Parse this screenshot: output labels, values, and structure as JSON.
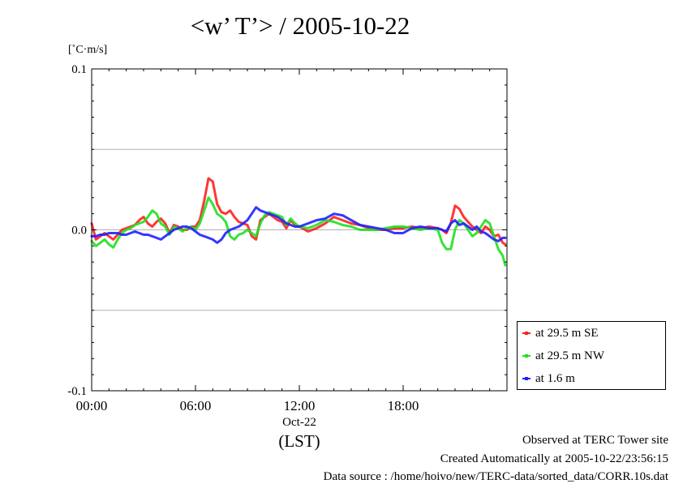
{
  "title": "<w’ T’> / 2005-10-22",
  "unit_label": "[˚C·m/s]",
  "x_sub_label": "Oct-22",
  "x_label": "(LST)",
  "footer": {
    "site": "Observed at TERC Tower site",
    "created": "Created Automatically at 2005-10-22/23:56:15",
    "source": "Data source : /home/hoivo/new/TERC-data/sorted_data/CORR.10s.dat"
  },
  "chart_data": {
    "type": "line",
    "title": "<w’ T’> / 2005-10-22",
    "ylabel": "[˚C·m/s]",
    "xlabel": "(LST)",
    "xlim": [
      0,
      24
    ],
    "ylim": [
      -0.1,
      0.1
    ],
    "x_ticks": [
      0,
      6,
      12,
      18
    ],
    "x_tick_labels": [
      "00:00",
      "06:00",
      "12:00",
      "18:00"
    ],
    "y_ticks": [
      -0.1,
      0.0,
      0.1
    ],
    "y_tick_labels": [
      "-0.1",
      "0.0",
      "0.1"
    ],
    "gridlines_y": [
      -0.05,
      0.0,
      0.05
    ],
    "legend_position": "bottom-right",
    "series": [
      {
        "name": "at 29.5 m SE",
        "color": "#ff2020",
        "x": [
          0,
          0.25,
          0.5,
          0.75,
          1,
          1.25,
          1.5,
          1.75,
          2,
          2.25,
          2.5,
          2.75,
          3,
          3.25,
          3.5,
          3.75,
          4,
          4.25,
          4.5,
          4.75,
          5,
          5.25,
          5.5,
          5.75,
          6,
          6.25,
          6.5,
          6.75,
          7,
          7.25,
          7.5,
          7.75,
          8,
          8.25,
          8.5,
          8.75,
          9,
          9.25,
          9.5,
          9.75,
          10,
          10.25,
          10.5,
          10.75,
          11,
          11.25,
          11.5,
          11.75,
          12,
          12.5,
          13,
          13.5,
          14,
          14.5,
          15,
          15.5,
          16,
          16.5,
          17,
          17.5,
          18,
          18.5,
          19,
          19.5,
          20,
          20.25,
          20.5,
          20.75,
          21,
          21.25,
          21.5,
          21.75,
          22,
          22.25,
          22.5,
          22.75,
          23,
          23.25,
          23.5,
          23.75,
          23.9
        ],
        "values": [
          0.004,
          -0.006,
          -0.004,
          -0.002,
          -0.004,
          -0.006,
          -0.003,
          0.0,
          0.001,
          0.002,
          0.003,
          0.006,
          0.008,
          0.004,
          0.002,
          0.005,
          0.007,
          0.004,
          -0.002,
          0.003,
          0.002,
          0.0,
          0.0,
          0.002,
          0.002,
          0.006,
          0.018,
          0.032,
          0.03,
          0.016,
          0.011,
          0.01,
          0.012,
          0.008,
          0.005,
          0.004,
          0.003,
          -0.004,
          -0.006,
          0.006,
          0.008,
          0.01,
          0.008,
          0.006,
          0.005,
          0.001,
          0.006,
          0.003,
          0.002,
          -0.001,
          0.001,
          0.004,
          0.008,
          0.006,
          0.004,
          0.003,
          0.001,
          0.0,
          0.0,
          0.001,
          0.001,
          0.002,
          0.001,
          0.002,
          0.001,
          0.0,
          -0.002,
          0.004,
          0.015,
          0.013,
          0.008,
          0.005,
          0.002,
          0.0,
          -0.002,
          0.002,
          0.0,
          -0.004,
          -0.003,
          -0.008,
          -0.009
        ]
      },
      {
        "name": "at 29.5 m NW",
        "color": "#20e020",
        "x": [
          0,
          0.25,
          0.5,
          0.75,
          1,
          1.25,
          1.5,
          1.75,
          2,
          2.25,
          2.5,
          2.75,
          3,
          3.25,
          3.5,
          3.75,
          4,
          4.25,
          4.5,
          4.75,
          5,
          5.25,
          5.5,
          5.75,
          6,
          6.25,
          6.5,
          6.75,
          7,
          7.25,
          7.5,
          7.75,
          8,
          8.25,
          8.5,
          8.75,
          9,
          9.25,
          9.5,
          9.75,
          10,
          10.25,
          10.5,
          10.75,
          11,
          11.25,
          11.5,
          11.75,
          12,
          12.5,
          13,
          13.5,
          14,
          14.5,
          15,
          15.5,
          16,
          16.5,
          17,
          17.5,
          18,
          18.5,
          19,
          19.5,
          20,
          20.25,
          20.5,
          20.75,
          21,
          21.25,
          21.5,
          21.75,
          22,
          22.25,
          22.5,
          22.75,
          23,
          23.25,
          23.5,
          23.75,
          23.9
        ],
        "values": [
          -0.007,
          -0.01,
          -0.008,
          -0.006,
          -0.009,
          -0.011,
          -0.006,
          -0.002,
          0.0,
          0.001,
          0.003,
          0.004,
          0.005,
          0.008,
          0.012,
          0.01,
          0.004,
          0.002,
          -0.003,
          0.002,
          0.001,
          -0.001,
          0.001,
          0.002,
          0.0,
          0.004,
          0.012,
          0.02,
          0.016,
          0.01,
          0.008,
          0.005,
          -0.004,
          -0.006,
          -0.003,
          -0.002,
          0.0,
          -0.002,
          -0.004,
          0.004,
          0.009,
          0.011,
          0.01,
          0.009,
          0.008,
          0.003,
          0.007,
          0.004,
          0.002,
          0.001,
          0.003,
          0.006,
          0.005,
          0.003,
          0.002,
          0.0,
          0.0,
          0.0,
          0.001,
          0.002,
          0.002,
          0.001,
          0.0,
          0.001,
          0.0,
          -0.008,
          -0.012,
          -0.012,
          0.0,
          0.006,
          0.004,
          0.0,
          -0.004,
          -0.002,
          0.002,
          0.006,
          0.004,
          -0.004,
          -0.012,
          -0.016,
          -0.022
        ]
      },
      {
        "name": "at 1.6 m",
        "color": "#2020ff",
        "x": [
          0,
          0.25,
          0.5,
          0.75,
          1,
          1.25,
          1.5,
          1.75,
          2,
          2.25,
          2.5,
          2.75,
          3,
          3.25,
          3.5,
          3.75,
          4,
          4.25,
          4.5,
          4.75,
          5,
          5.25,
          5.5,
          5.75,
          6,
          6.25,
          6.5,
          6.75,
          7,
          7.25,
          7.5,
          7.75,
          8,
          8.25,
          8.5,
          8.75,
          9,
          9.25,
          9.5,
          9.75,
          10,
          10.25,
          10.5,
          10.75,
          11,
          11.25,
          11.5,
          11.75,
          12,
          12.5,
          13,
          13.5,
          14,
          14.5,
          15,
          15.5,
          16,
          16.5,
          17,
          17.5,
          18,
          18.5,
          19,
          19.5,
          20,
          20.25,
          20.5,
          20.75,
          21,
          21.25,
          21.5,
          21.75,
          22,
          22.25,
          22.5,
          22.75,
          23,
          23.25,
          23.5,
          23.75,
          23.9
        ],
        "values": [
          -0.004,
          -0.004,
          -0.003,
          -0.003,
          -0.002,
          -0.002,
          -0.002,
          -0.003,
          -0.003,
          -0.002,
          -0.001,
          -0.002,
          -0.003,
          -0.003,
          -0.004,
          -0.005,
          -0.006,
          -0.004,
          -0.002,
          0.0,
          0.001,
          0.002,
          0.002,
          0.001,
          -0.001,
          -0.003,
          -0.004,
          -0.005,
          -0.006,
          -0.008,
          -0.006,
          -0.002,
          0.0,
          0.001,
          0.002,
          0.004,
          0.006,
          0.01,
          0.014,
          0.012,
          0.011,
          0.01,
          0.009,
          0.008,
          0.006,
          0.004,
          0.003,
          0.002,
          0.002,
          0.004,
          0.006,
          0.007,
          0.01,
          0.009,
          0.006,
          0.003,
          0.002,
          0.001,
          0.0,
          -0.002,
          -0.002,
          0.001,
          0.002,
          0.001,
          0.001,
          0.0,
          -0.001,
          0.004,
          0.006,
          0.003,
          0.004,
          0.002,
          0.0,
          0.002,
          -0.001,
          -0.002,
          -0.004,
          -0.006,
          -0.007,
          -0.005,
          -0.005
        ]
      }
    ]
  }
}
